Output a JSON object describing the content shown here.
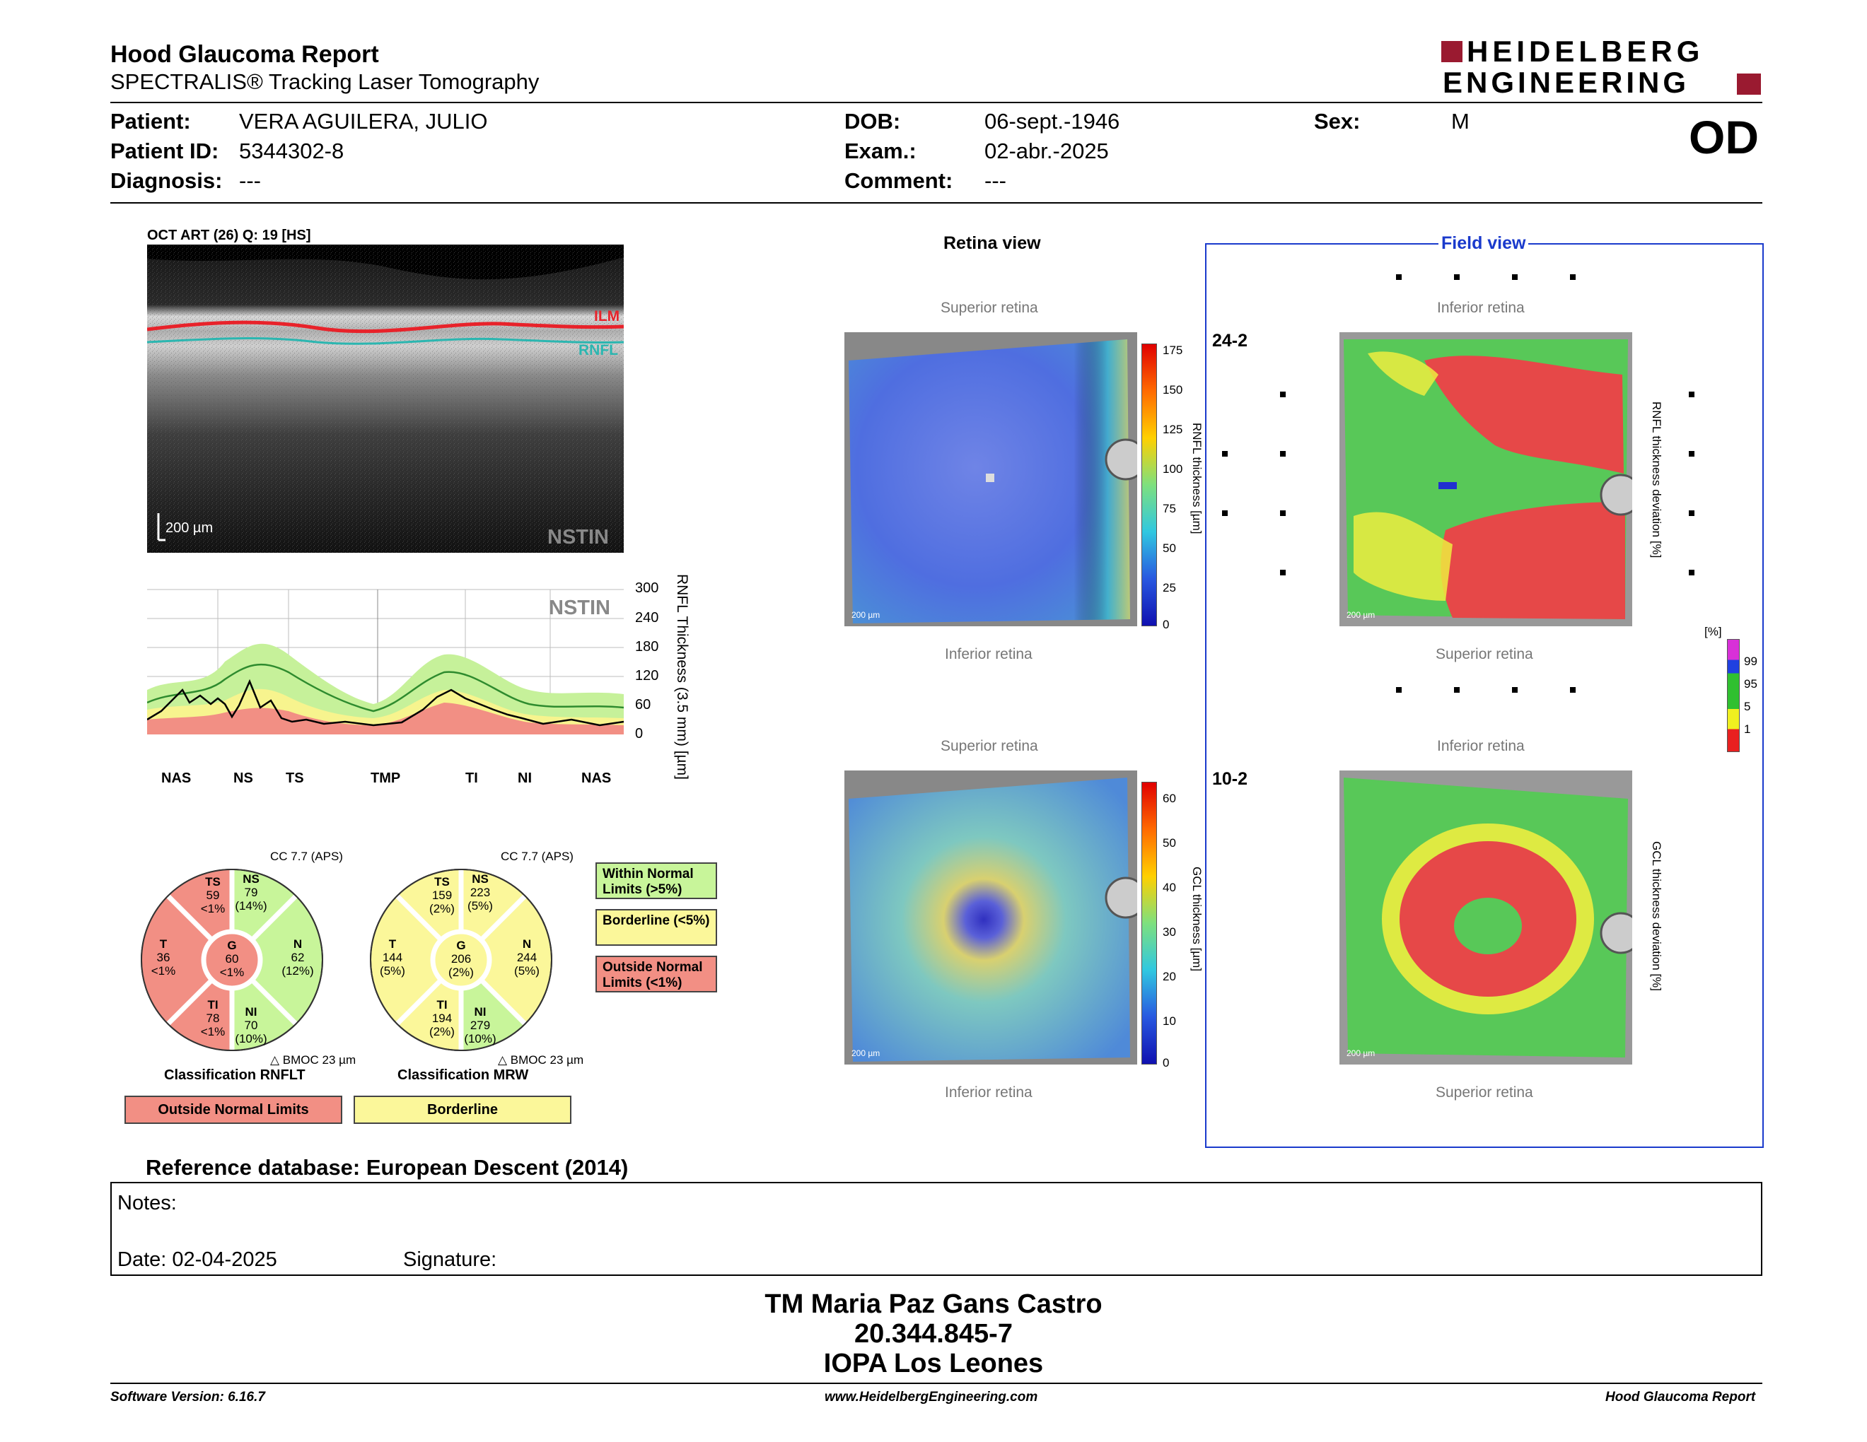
{
  "header": {
    "title": "Hood Glaucoma Report",
    "subtitle": "SPECTRALIS® Tracking Laser Tomography",
    "logo_line1": "HEIDELBERG",
    "logo_line2": "ENGINEERING"
  },
  "patient": {
    "patient_label": "Patient:",
    "patient_value": "VERA AGUILERA, JULIO",
    "id_label": "Patient ID:",
    "id_value": "5344302-8",
    "diag_label": "Diagnosis:",
    "diag_value": "---",
    "dob_label": "DOB:",
    "dob_value": "06-sept.-1946",
    "exam_label": "Exam.:",
    "exam_value": "02-abr.-2025",
    "comment_label": "Comment:",
    "comment_value": "---",
    "sex_label": "Sex:",
    "sex_value": "M",
    "eye": "OD"
  },
  "oct": {
    "caption": "OCT ART (26) Q: 19 [HS]",
    "ilm": "ILM",
    "rnfl": "RNFL",
    "scale": "200 µm",
    "nstin": "NSTIN"
  },
  "profile": {
    "nstin": "NSTIN",
    "ylabel": "RNFL Thickness (3.5 mm) [µm]",
    "yticks": [
      "300",
      "240",
      "180",
      "120",
      "60",
      "0"
    ],
    "sectors": [
      "NAS",
      "NS",
      "TS",
      "TMP",
      "TI",
      "NI",
      "NAS"
    ]
  },
  "rnflt_circle": {
    "cc": "CC 7.7 (APS)",
    "bmo": "BMOC 23 µm",
    "classification_label": "Classification RNFLT",
    "classification": "Outside Normal Limits",
    "sectors": {
      "TS": {
        "name": "TS",
        "value": "59",
        "pct": "<1%"
      },
      "NS": {
        "name": "NS",
        "value": "79",
        "pct": "(14%)"
      },
      "T": {
        "name": "T",
        "value": "36",
        "pct": "<1%"
      },
      "G": {
        "name": "G",
        "value": "60",
        "pct": "<1%"
      },
      "N": {
        "name": "N",
        "value": "62",
        "pct": "(12%)"
      },
      "TI": {
        "name": "TI",
        "value": "78",
        "pct": "<1%"
      },
      "NI": {
        "name": "NI",
        "value": "70",
        "pct": "(10%)"
      }
    }
  },
  "mrw_circle": {
    "cc": "CC 7.7 (APS)",
    "bmo": "BMOC 23 µm",
    "classification_label": "Classification MRW",
    "classification": "Borderline",
    "sectors": {
      "TS": {
        "name": "TS",
        "value": "159",
        "pct": "(2%)"
      },
      "NS": {
        "name": "NS",
        "value": "223",
        "pct": "(5%)"
      },
      "T": {
        "name": "T",
        "value": "144",
        "pct": "(5%)"
      },
      "G": {
        "name": "G",
        "value": "206",
        "pct": "(2%)"
      },
      "N": {
        "name": "N",
        "value": "244",
        "pct": "(5%)"
      },
      "TI": {
        "name": "TI",
        "value": "194",
        "pct": "(2%)"
      },
      "NI": {
        "name": "NI",
        "value": "279",
        "pct": "(10%)"
      }
    }
  },
  "legend": {
    "within": "Within Normal Limits (>5%)",
    "borderline": "Borderline (<5%)",
    "outside": "Outside Normal Limits (<1%)"
  },
  "retina_view": {
    "title": "Retina view",
    "superior": "Superior retina",
    "inferior": "Inferior retina",
    "scale": "200 µm",
    "rnfl_label": "RNFL thickness [µm]",
    "rnfl_ticks": [
      "175",
      "150",
      "125",
      "100",
      "75",
      "50",
      "25",
      "0"
    ],
    "gcl_label": "GCL thickness [µm]",
    "gcl_ticks": [
      "60",
      "50",
      "40",
      "30",
      "20",
      "10",
      "0"
    ]
  },
  "field_view": {
    "title": "Field view",
    "inferior": "Inferior retina",
    "superior": "Superior retina",
    "label_242": "24-2",
    "label_102": "10-2",
    "rnfl_dev_label": "RNFL thickness deviation [%]",
    "gcl_dev_label": "GCL thickness deviation [%]",
    "pct_unit": "[%]",
    "pct_ticks": [
      "99",
      "95",
      "5",
      "1"
    ]
  },
  "reference": "Reference database: European Descent (2014)",
  "notes": {
    "notes_label": "Notes:",
    "date_label": "Date: 02-04-2025",
    "signature_label": "Signature:"
  },
  "signature_block": {
    "name": "TM Maria Paz Gans Castro",
    "id": "20.344.845-7",
    "org": "IOPA Los Leones"
  },
  "footer": {
    "version": "Software Version: 6.16.7",
    "url": "www.HeidelbergEngineering.com",
    "report": "Hood Glaucoma Report"
  },
  "colors": {
    "normal": "#c8f59a",
    "borderline": "#fbf79a",
    "outside": "#f28f84",
    "accent_blue": "#1a3acc",
    "brand": "#9a1a30"
  }
}
